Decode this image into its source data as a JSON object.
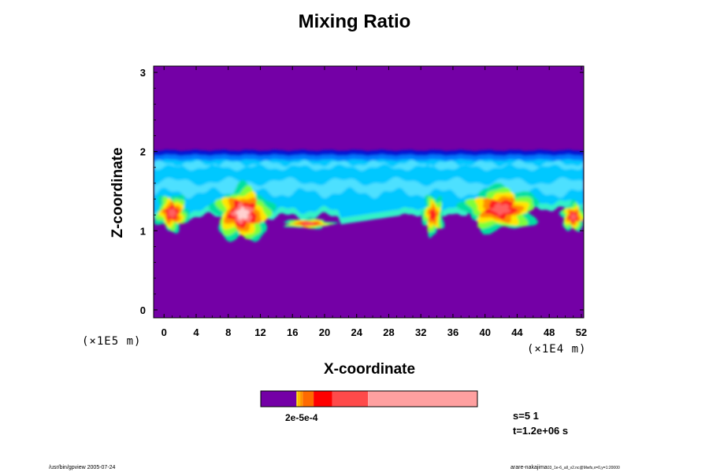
{
  "chart_data": {
    "type": "heatmap",
    "title": "Mixing Ratio",
    "xlabel": "X-coordinate",
    "ylabel": "Z-coordinate",
    "x_factor_label": "(×1E4 m)",
    "y_factor_label": "(×1E5 m)",
    "xlim": [
      -1.3,
      52.3
    ],
    "ylim": [
      -0.1,
      3.08
    ],
    "x_ticks": [
      "0",
      "4",
      "8",
      "12",
      "16",
      "20",
      "24",
      "28",
      "32",
      "36",
      "40",
      "44",
      "48",
      "52"
    ],
    "y_ticks": [
      "0",
      "1",
      "2",
      "3"
    ],
    "background_color": "#7400a6",
    "layer": {
      "z_bottom": 1.0,
      "z_top": 2.0
    },
    "clouds": [
      {
        "x_center": 9.8,
        "x_halfwidth": 3.5,
        "z_base": 0.88,
        "z_top": 1.55,
        "peak": "high"
      },
      {
        "x_center": 18.0,
        "x_halfwidth": 3.0,
        "z_base": 1.03,
        "z_top": 1.15,
        "peak": "medium"
      },
      {
        "x_center": 1.0,
        "x_halfwidth": 2.0,
        "z_base": 1.0,
        "z_top": 1.45,
        "peak": "medium"
      },
      {
        "x_center": 33.5,
        "x_halfwidth": 1.3,
        "z_base": 0.95,
        "z_top": 1.45,
        "peak": "low"
      },
      {
        "x_center": 42.0,
        "x_halfwidth": 4.5,
        "z_base": 1.0,
        "z_top": 1.55,
        "peak": "medium"
      },
      {
        "x_center": 51.0,
        "x_halfwidth": 1.5,
        "z_base": 1.0,
        "z_top": 1.35,
        "peak": "medium"
      }
    ],
    "colorbar": {
      "segments": [
        {
          "color": "#7400a6",
          "fraction": 0.165
        },
        {
          "color": "#ffee00",
          "fraction": 0.005
        },
        {
          "color": "#ffb800",
          "fraction": 0.012
        },
        {
          "color": "#ff9500",
          "fraction": 0.012
        },
        {
          "color": "#ff6a00",
          "fraction": 0.05
        },
        {
          "color": "#ff0000",
          "fraction": 0.085
        },
        {
          "color": "#ff4a4a",
          "fraction": 0.166
        },
        {
          "color": "#ffa0a0",
          "fraction": 0.505
        }
      ],
      "label": "2e-5e-4"
    }
  },
  "info": {
    "step": "s=5 1",
    "time": "t=1.2e+06 s"
  },
  "footer": {
    "left": "/usr/bin/gpview 2005-07-24",
    "right_main": "arare-nakajima",
    "right_small": "03_1e-6_all_v2.nc@Mwfs,x=0,y=1:20000"
  }
}
